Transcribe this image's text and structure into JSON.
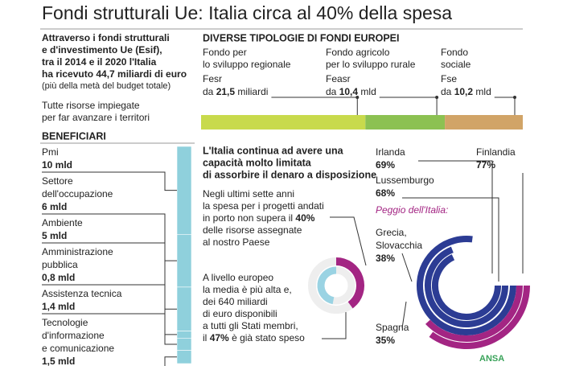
{
  "title": "Fondi strutturali Ue: Italia circa al 40% della spesa",
  "intro": {
    "lines": [
      "Attraverso i fondi strutturali",
      "e d'investimento Ue (Esif),",
      "tra il 2014 e il 2020 l'Italia",
      "ha ricevuto 44,7 miliardi di euro"
    ],
    "note": "(più della metà del budget totale)",
    "sub": [
      "Tutte risorse impiegate",
      "per far avanzare i territori"
    ]
  },
  "funds": {
    "heading": "DIVERSE TIPOLOGIE DI FONDI EUROPEI",
    "items": [
      {
        "lines": [
          "Fondo per",
          "lo sviluppo regionale"
        ],
        "name": "Fesr",
        "prefix": "da",
        "amount": "21,5",
        "unit": "miliardi",
        "value": 21.5,
        "color": "#c8da4c"
      },
      {
        "lines": [
          "Fondo agricolo",
          "per lo sviluppo rurale"
        ],
        "name": "Feasr",
        "prefix": "da",
        "amount": "10,4",
        "unit": "mld",
        "value": 10.4,
        "color": "#8cc152"
      },
      {
        "lines": [
          "Fondo",
          "sociale"
        ],
        "name": "Fse",
        "prefix": "da",
        "amount": "10,2",
        "unit": "mld",
        "value": 10.2,
        "color": "#d1a467"
      }
    ]
  },
  "beneficiaries": {
    "heading": "BENEFICIARI",
    "color": "#8fd0dc",
    "items": [
      {
        "lines": [
          "Pmi"
        ],
        "amount": "10 mld",
        "value": 10
      },
      {
        "lines": [
          "Settore",
          "dell'occupazione"
        ],
        "amount": "6 mld",
        "value": 6
      },
      {
        "lines": [
          "Ambiente"
        ],
        "amount": "5 mld",
        "value": 5
      },
      {
        "lines": [
          "Amministrazione",
          "pubblica"
        ],
        "amount": "0,8 mld",
        "value": 0.8
      },
      {
        "lines": [
          "Assistenza tecnica"
        ],
        "amount": "1,4 mld",
        "value": 1.4
      },
      {
        "lines": [
          "Tecnologie",
          "d'informazione",
          "e comunicazione"
        ],
        "amount": "1,5 mld",
        "value": 1.5
      }
    ]
  },
  "italy": {
    "heading": [
      "L'Italia continua ad avere una",
      "capacità molto limitata",
      "di assorbire il denaro a disposizione"
    ],
    "p1": [
      "Negli ultimi sette anni",
      "la spesa per i progetti andati",
      "in porto non supera il",
      "delle risorse assegnate",
      "al nostro Paese"
    ],
    "italy": {
      "value": 40,
      "label": "40%",
      "color": "#a32583"
    },
    "p2": [
      "A livello europeo",
      "la media è più alta e,",
      "dei 640 miliardi",
      "di euro disponibili",
      "a tutti gli Stati membri,",
      "il",
      "è già stato speso"
    ],
    "eu": {
      "value": 47,
      "label": "47%",
      "color": "#9ad3e3"
    }
  },
  "countries": {
    "worse": "Peggio dell'Italia:",
    "items": [
      {
        "name": [
          "Irlanda"
        ],
        "label": "69%",
        "value": 69,
        "color": "#2c3c94"
      },
      {
        "name": [
          "Finlandia"
        ],
        "label": "77%",
        "value": 77,
        "color": "#2c3c94"
      },
      {
        "name": [
          "Lussemburgo"
        ],
        "label": "68%",
        "value": 68,
        "color": "#2c3c94"
      },
      {
        "name": [
          "Grecia,",
          "Slovacchia"
        ],
        "label": "38%",
        "value": 38,
        "color": "#a32583"
      },
      {
        "name": [
          "Spagna"
        ],
        "label": "35%",
        "value": 35,
        "color": "#a32583"
      }
    ]
  },
  "source": "ANSA"
}
